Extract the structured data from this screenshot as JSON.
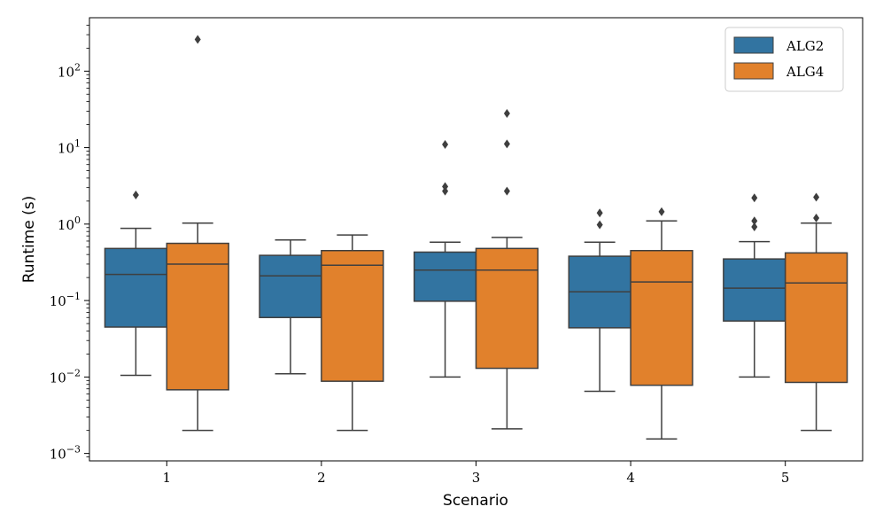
{
  "chart_data": {
    "type": "box",
    "xlabel": "Scenario",
    "ylabel": "Runtime (s)",
    "yscale": "log",
    "ylim": [
      0.0008,
      500
    ],
    "y_ticks": [
      {
        "value": 0.001,
        "mantissa": "10",
        "exp": "−3"
      },
      {
        "value": 0.01,
        "mantissa": "10",
        "exp": "−2"
      },
      {
        "value": 0.1,
        "mantissa": "10",
        "exp": "−1"
      },
      {
        "value": 1,
        "mantissa": "10",
        "exp": "0"
      },
      {
        "value": 10,
        "mantissa": "10",
        "exp": "1"
      },
      {
        "value": 100,
        "mantissa": "10",
        "exp": "2"
      }
    ],
    "categories": [
      "1",
      "2",
      "3",
      "4",
      "5"
    ],
    "legend_position": "top-right",
    "grid": false,
    "series": [
      {
        "name": "ALG2",
        "color": "#3274a1",
        "boxes": [
          {
            "whislo": 0.0105,
            "q1": 0.045,
            "med": 0.22,
            "q3": 0.48,
            "whishi": 0.88,
            "fliers": [
              2.4
            ]
          },
          {
            "whislo": 0.011,
            "q1": 0.06,
            "med": 0.21,
            "q3": 0.39,
            "whishi": 0.62,
            "fliers": []
          },
          {
            "whislo": 0.01,
            "q1": 0.098,
            "med": 0.25,
            "q3": 0.43,
            "whishi": 0.58,
            "fliers": [
              2.7,
              3.1,
              11
            ]
          },
          {
            "whislo": 0.0065,
            "q1": 0.044,
            "med": 0.13,
            "q3": 0.38,
            "whishi": 0.58,
            "fliers": [
              0.98,
              1.4
            ]
          },
          {
            "whislo": 0.01,
            "q1": 0.054,
            "med": 0.145,
            "q3": 0.35,
            "whishi": 0.59,
            "fliers": [
              0.92,
              1.1,
              2.2
            ]
          }
        ]
      },
      {
        "name": "ALG4",
        "color": "#e1812c",
        "boxes": [
          {
            "whislo": 0.002,
            "q1": 0.0068,
            "med": 0.3,
            "q3": 0.56,
            "whishi": 1.03,
            "fliers": [
              260
            ]
          },
          {
            "whislo": 0.002,
            "q1": 0.0088,
            "med": 0.29,
            "q3": 0.45,
            "whishi": 0.72,
            "fliers": []
          },
          {
            "whislo": 0.0021,
            "q1": 0.013,
            "med": 0.25,
            "q3": 0.48,
            "whishi": 0.67,
            "fliers": [
              2.7,
              11.2,
              28
            ]
          },
          {
            "whislo": 0.00155,
            "q1": 0.0078,
            "med": 0.175,
            "q3": 0.45,
            "whishi": 1.1,
            "fliers": [
              1.45
            ]
          },
          {
            "whislo": 0.002,
            "q1": 0.0085,
            "med": 0.17,
            "q3": 0.42,
            "whishi": 1.03,
            "fliers": [
              1.2,
              2.25
            ]
          }
        ]
      }
    ]
  }
}
